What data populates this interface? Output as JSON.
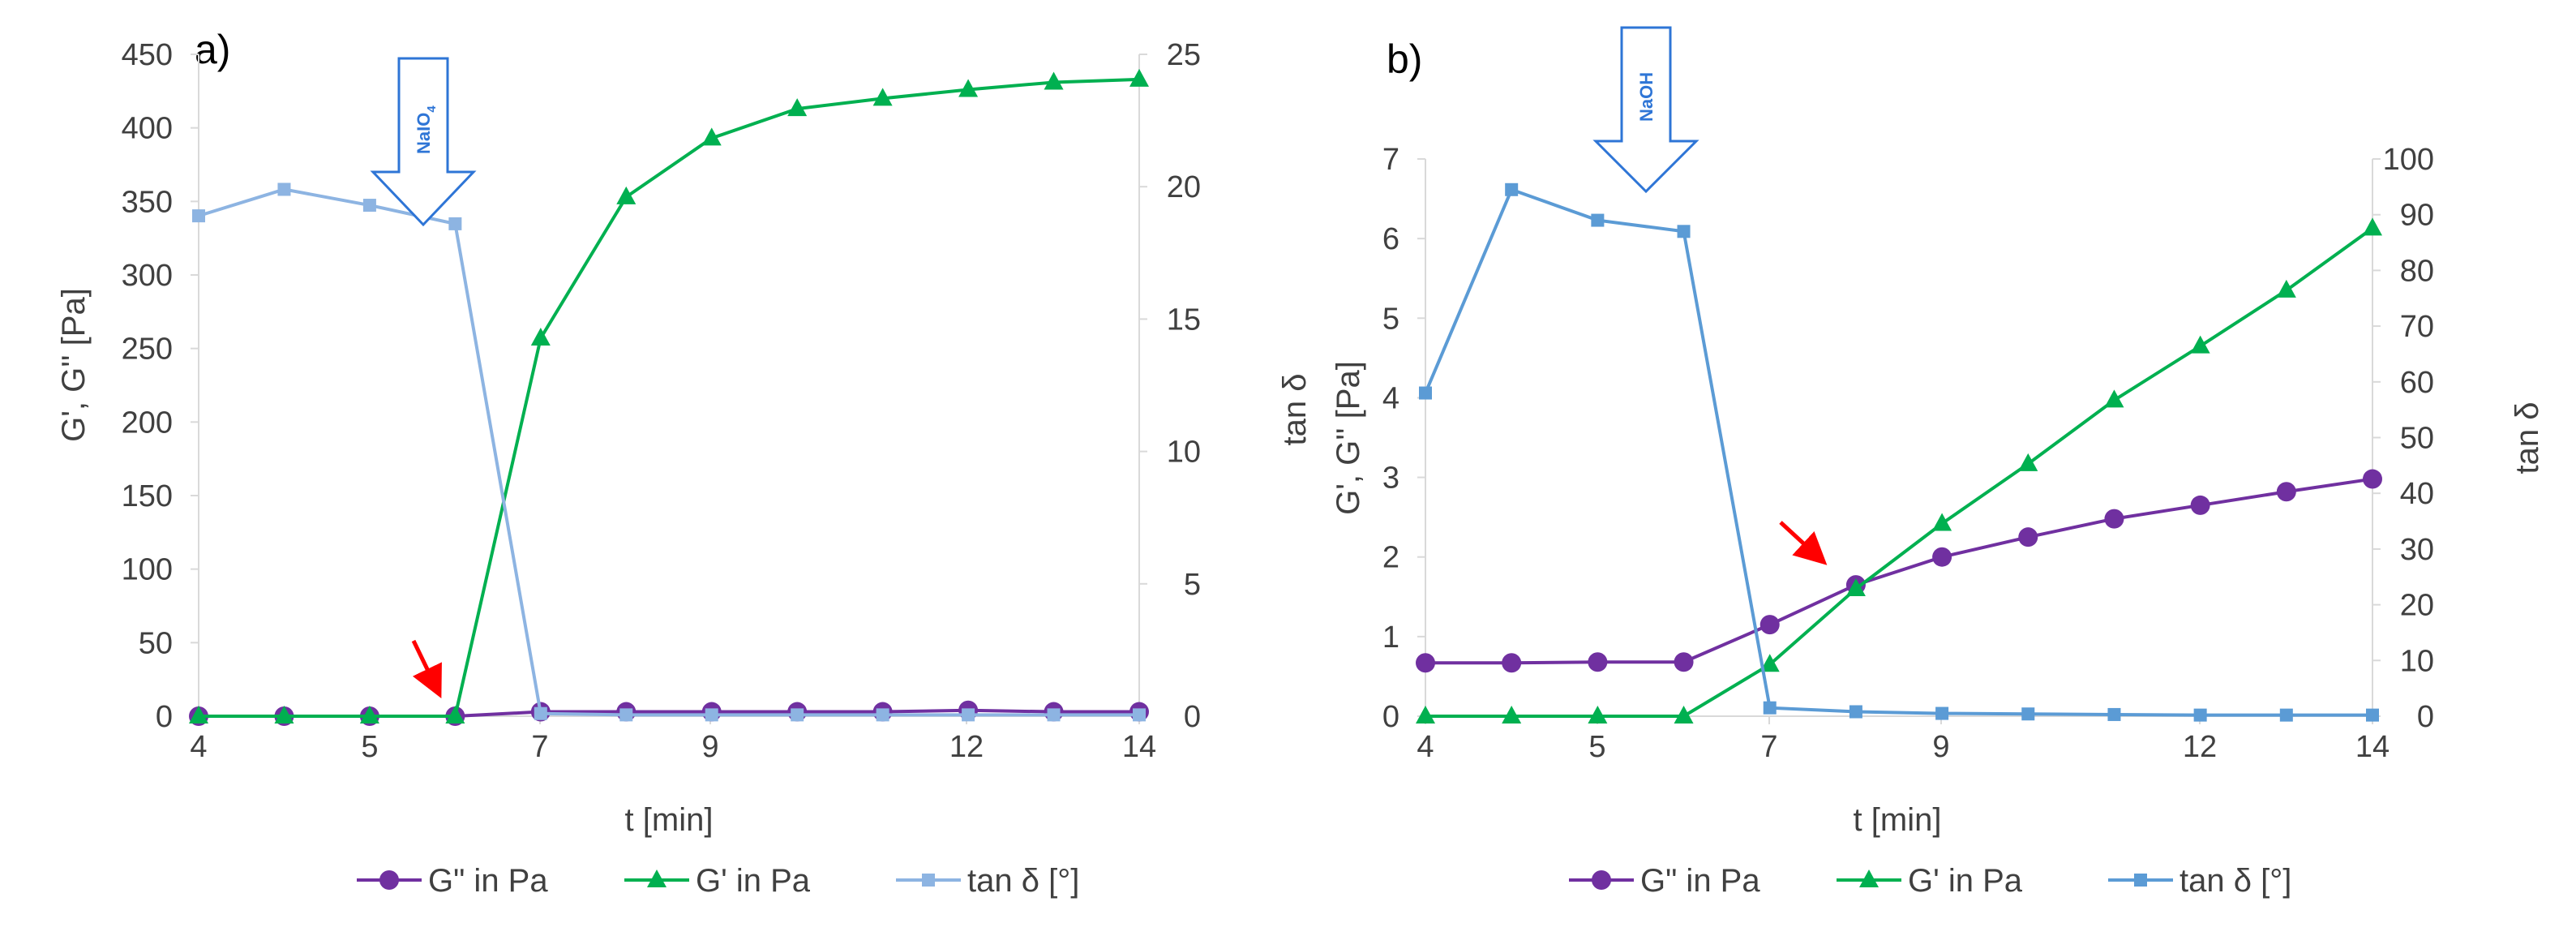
{
  "chart_data": [
    {
      "panel_label": "a)",
      "type": "line",
      "xlabel": "t [min]",
      "ylabel": "G', G'' [Pa]",
      "y2label": "tan δ",
      "x_tick_labels": [
        "4",
        "5",
        "7",
        "9",
        "12",
        "14"
      ],
      "y_ticks": [
        "0",
        "50",
        "100",
        "150",
        "200",
        "250",
        "300",
        "350",
        "400",
        "450"
      ],
      "y2_ticks": [
        "0",
        "5",
        "10",
        "15",
        "20",
        "25"
      ],
      "ylim": [
        0,
        450
      ],
      "y2lim": [
        0,
        25
      ],
      "x_index": [
        0,
        1,
        2,
        3,
        4,
        5,
        6,
        7,
        8,
        9,
        10,
        11
      ],
      "annotation": {
        "text": "NaIO",
        "subscript": "4"
      },
      "series": [
        {
          "name": "G\" in Pa",
          "axis": "left",
          "marker": "circle",
          "color": "#7030a0",
          "values": [
            0,
            0,
            0,
            0,
            3,
            3,
            3,
            3,
            3,
            4,
            3,
            3
          ]
        },
        {
          "name": "G' in Pa",
          "axis": "left",
          "marker": "triangle",
          "color": "#00b050",
          "values": [
            0,
            0,
            0,
            0,
            257,
            353,
            393,
            413,
            420,
            426,
            431,
            433
          ]
        },
        {
          "name": "tan δ [°]",
          "axis": "right",
          "marker": "square",
          "color": "#8db4e2",
          "values": [
            18.9,
            19.9,
            19.3,
            18.6,
            0.1,
            0.05,
            0.05,
            0.05,
            0.05,
            0.05,
            0.05,
            0.05
          ]
        }
      ]
    },
    {
      "panel_label": "b)",
      "type": "line",
      "xlabel": "t [min]",
      "ylabel": "G', G'' [Pa]",
      "y2label": "tan δ",
      "x_tick_labels": [
        "4",
        "5",
        "7",
        "9",
        "12",
        "14"
      ],
      "y_ticks": [
        "0",
        "1",
        "2",
        "3",
        "4",
        "5",
        "6",
        "7"
      ],
      "y2_ticks": [
        "0",
        "10",
        "20",
        "30",
        "40",
        "50",
        "60",
        "70",
        "80",
        "90",
        "100"
      ],
      "ylim": [
        0,
        7
      ],
      "y2lim": [
        0,
        100
      ],
      "x_index": [
        0,
        1,
        2,
        3,
        4,
        5,
        6,
        7,
        8,
        9,
        10,
        11
      ],
      "annotation": {
        "text": "NaOH",
        "subscript": ""
      },
      "series": [
        {
          "name": "G\" in Pa",
          "axis": "left",
          "marker": "circle",
          "color": "#7030a0",
          "values": [
            0.67,
            0.67,
            0.68,
            0.68,
            1.15,
            1.65,
            2.0,
            2.25,
            2.48,
            2.65,
            2.82,
            2.98
          ]
        },
        {
          "name": "G' in Pa",
          "axis": "left",
          "marker": "triangle",
          "color": "#00b050",
          "values": [
            0,
            0,
            0,
            0,
            0.65,
            1.6,
            2.42,
            3.17,
            3.97,
            4.65,
            5.35,
            6.13
          ]
        },
        {
          "name": "tan δ [°]",
          "axis": "right",
          "marker": "square",
          "color": "#5b9bd5",
          "values": [
            58,
            94.5,
            89,
            87,
            1.5,
            0.8,
            0.5,
            0.4,
            0.3,
            0.2,
            0.2,
            0.2
          ]
        }
      ]
    }
  ]
}
